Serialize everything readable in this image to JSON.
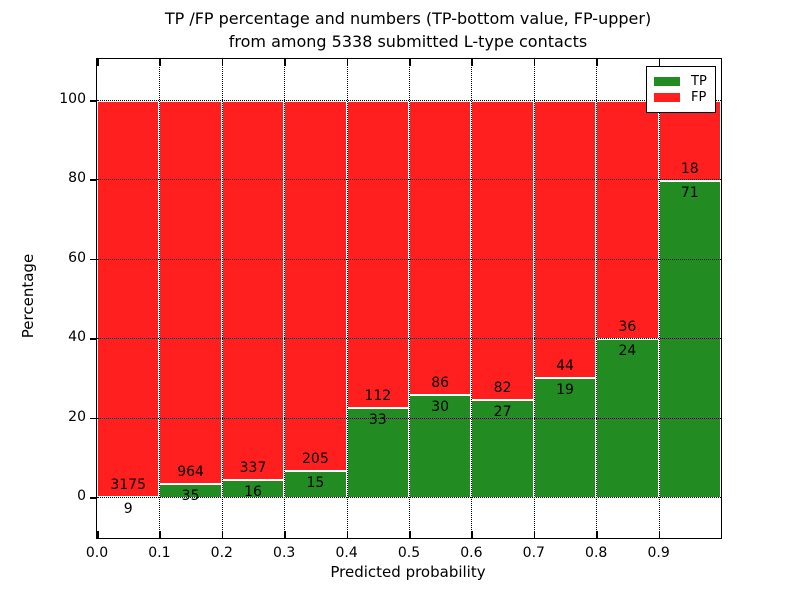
{
  "title": {
    "line1": "TP /FP percentage and numbers (TP-bottom value, FP-upper)",
    "line2": "from among 5338 submitted L-type contacts"
  },
  "axes": {
    "xlabel": "Predicted probability",
    "ylabel": "Percentage",
    "x_tick_labels": [
      "0.0",
      "0.1",
      "0.2",
      "0.3",
      "0.4",
      "0.5",
      "0.6",
      "0.7",
      "0.8",
      "0.9"
    ],
    "y_tick_values": [
      0,
      20,
      40,
      60,
      80,
      100
    ],
    "grid": "dotted"
  },
  "legend": {
    "position": "upper right",
    "items": [
      {
        "label": "TP",
        "color": "#228b22"
      },
      {
        "label": "FP",
        "color": "#ff1f1f"
      }
    ]
  },
  "colors": {
    "tp_green": "#228b22",
    "fp_red": "#ff1f1f",
    "bar_edge": "#ffffff",
    "text": "#000000"
  },
  "chart_data": {
    "type": "bar",
    "stacked": true,
    "normalized_to_percent": true,
    "title": "TP /FP percentage and numbers (TP-bottom value, FP-upper) from among 5338 submitted L-type contacts",
    "xlabel": "Predicted probability",
    "ylabel": "Percentage",
    "total_contacts": 5338,
    "bin_edges": [
      0.0,
      0.1,
      0.2,
      0.3,
      0.4,
      0.5,
      0.6,
      0.7,
      0.8,
      0.9,
      1.0
    ],
    "categories": [
      "0.0-0.1",
      "0.1-0.2",
      "0.2-0.3",
      "0.3-0.4",
      "0.4-0.5",
      "0.5-0.6",
      "0.6-0.7",
      "0.7-0.8",
      "0.8-0.9",
      "0.9-1.0"
    ],
    "series": [
      {
        "name": "TP",
        "color": "#228b22",
        "values": [
          9,
          35,
          16,
          15,
          33,
          30,
          27,
          19,
          24,
          71
        ]
      },
      {
        "name": "FP",
        "color": "#ff1f1f",
        "values": [
          3175,
          964,
          337,
          205,
          112,
          86,
          82,
          44,
          36,
          18
        ]
      }
    ],
    "ylim": [
      -10.1,
      110.6
    ],
    "yticks": [
      0,
      20,
      40,
      60,
      80,
      100
    ],
    "legend_position": "upper right"
  }
}
